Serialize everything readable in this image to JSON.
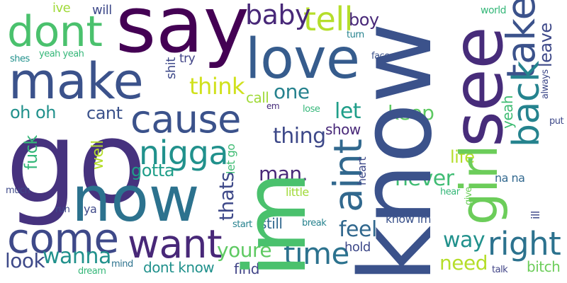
{
  "words": [
    {
      "text": "say",
      "color": "#440154"
    },
    {
      "text": "know",
      "color": "#3b528b"
    },
    {
      "text": "go",
      "color": "#46327e"
    },
    {
      "text": "im",
      "color": "#4ac16d"
    },
    {
      "text": "see",
      "color": "#472c7a"
    },
    {
      "text": "love",
      "color": "#365c8d"
    },
    {
      "text": "now",
      "color": "#2c728e"
    },
    {
      "text": "make",
      "color": "#3b528b"
    },
    {
      "text": "dont",
      "color": "#4ac16d"
    },
    {
      "text": "girl",
      "color": "#6ccd5a"
    },
    {
      "text": "come",
      "color": "#3e4989"
    },
    {
      "text": "cause",
      "color": "#3b528b"
    },
    {
      "text": "want",
      "color": "#482878"
    },
    {
      "text": "take",
      "color": "#3b528b"
    },
    {
      "text": "back",
      "color": "#25838e"
    },
    {
      "text": "right",
      "color": "#2c728e"
    },
    {
      "text": "nigga",
      "color": "#21918c"
    },
    {
      "text": "tell",
      "color": "#b5de2b"
    },
    {
      "text": "aint",
      "color": "#31688e"
    },
    {
      "text": "baby",
      "color": "#482878"
    },
    {
      "text": "time",
      "color": "#2c728e"
    },
    {
      "text": "youre",
      "color": "#5ec962"
    },
    {
      "text": "feel",
      "color": "#31688e"
    },
    {
      "text": "think",
      "color": "#d0e11c"
    },
    {
      "text": "thing",
      "color": "#3e4989"
    },
    {
      "text": "never",
      "color": "#3fbc73"
    },
    {
      "text": "thats",
      "color": "#3e4989"
    },
    {
      "text": "way",
      "color": "#21918c"
    },
    {
      "text": "need",
      "color": "#b5de2b"
    },
    {
      "text": "wanna",
      "color": "#21918c"
    },
    {
      "text": "let",
      "color": "#1f9e89"
    },
    {
      "text": "boy",
      "color": "#482878"
    },
    {
      "text": "one",
      "color": "#26828e"
    },
    {
      "text": "keep",
      "color": "#5ec962"
    },
    {
      "text": "leave",
      "color": "#3e4989"
    },
    {
      "text": "look",
      "color": "#3e4989"
    },
    {
      "text": "cant",
      "color": "#3b528b"
    },
    {
      "text": "man.",
      "color": "#482878"
    },
    {
      "text": "oh oh",
      "color": "#21918c"
    },
    {
      "text": "yeah",
      "color": "#3fbc73"
    },
    {
      "text": "bitch",
      "color": "#6ccd5a"
    },
    {
      "text": "life",
      "color": "#b5de2b"
    },
    {
      "text": "gotta",
      "color": "#1f9e89"
    },
    {
      "text": "dont know",
      "color": "#21918c"
    },
    {
      "text": "fuck",
      "color": "#35b779"
    },
    {
      "text": "well",
      "color": "#b5de2b"
    },
    {
      "text": "ive",
      "color": "#a0da39"
    },
    {
      "text": "will",
      "color": "#3e4989"
    },
    {
      "text": "try",
      "color": "#414487"
    },
    {
      "text": "shit",
      "color": "#3e4989"
    },
    {
      "text": "call",
      "color": "#a0da39"
    },
    {
      "text": "let go",
      "color": "#3fbc73"
    },
    {
      "text": "heart",
      "color": "#3e4989"
    },
    {
      "text": "show",
      "color": "#482878"
    },
    {
      "text": "little",
      "color": "#a0da39"
    },
    {
      "text": "still",
      "color": "#31688e"
    },
    {
      "text": "find",
      "color": "#414487"
    },
    {
      "text": "hold",
      "color": "#3e4989"
    },
    {
      "text": "know im",
      "color": "#3b528b"
    },
    {
      "text": "na na",
      "color": "#31688e"
    },
    {
      "text": "ill",
      "color": "#3e4989"
    },
    {
      "text": "ya",
      "color": "#3e4989"
    },
    {
      "text": "world",
      "color": "#35b779"
    },
    {
      "text": "turn",
      "color": "#26828e"
    },
    {
      "text": "face",
      "color": "#3b528b"
    },
    {
      "text": "always",
      "color": "#3e4989"
    },
    {
      "text": "put",
      "color": "#3e4989"
    },
    {
      "text": "shes",
      "color": "#21918c"
    },
    {
      "text": "yeah yeah",
      "color": "#35b779"
    },
    {
      "text": "em",
      "color": "#472c7a"
    },
    {
      "text": "lose",
      "color": "#35b779"
    },
    {
      "text": "much",
      "color": "#3e4989"
    },
    {
      "text": "run",
      "color": "#3e4989"
    },
    {
      "text": "start",
      "color": "#26828e"
    },
    {
      "text": "break",
      "color": "#26828e"
    },
    {
      "text": "hear",
      "color": "#35b779"
    },
    {
      "text": "give",
      "color": "#6ccd5a"
    },
    {
      "text": "talk",
      "color": "#414487"
    },
    {
      "text": "dream",
      "color": "#35b779"
    },
    {
      "text": "mind",
      "color": "#2c728e"
    }
  ]
}
